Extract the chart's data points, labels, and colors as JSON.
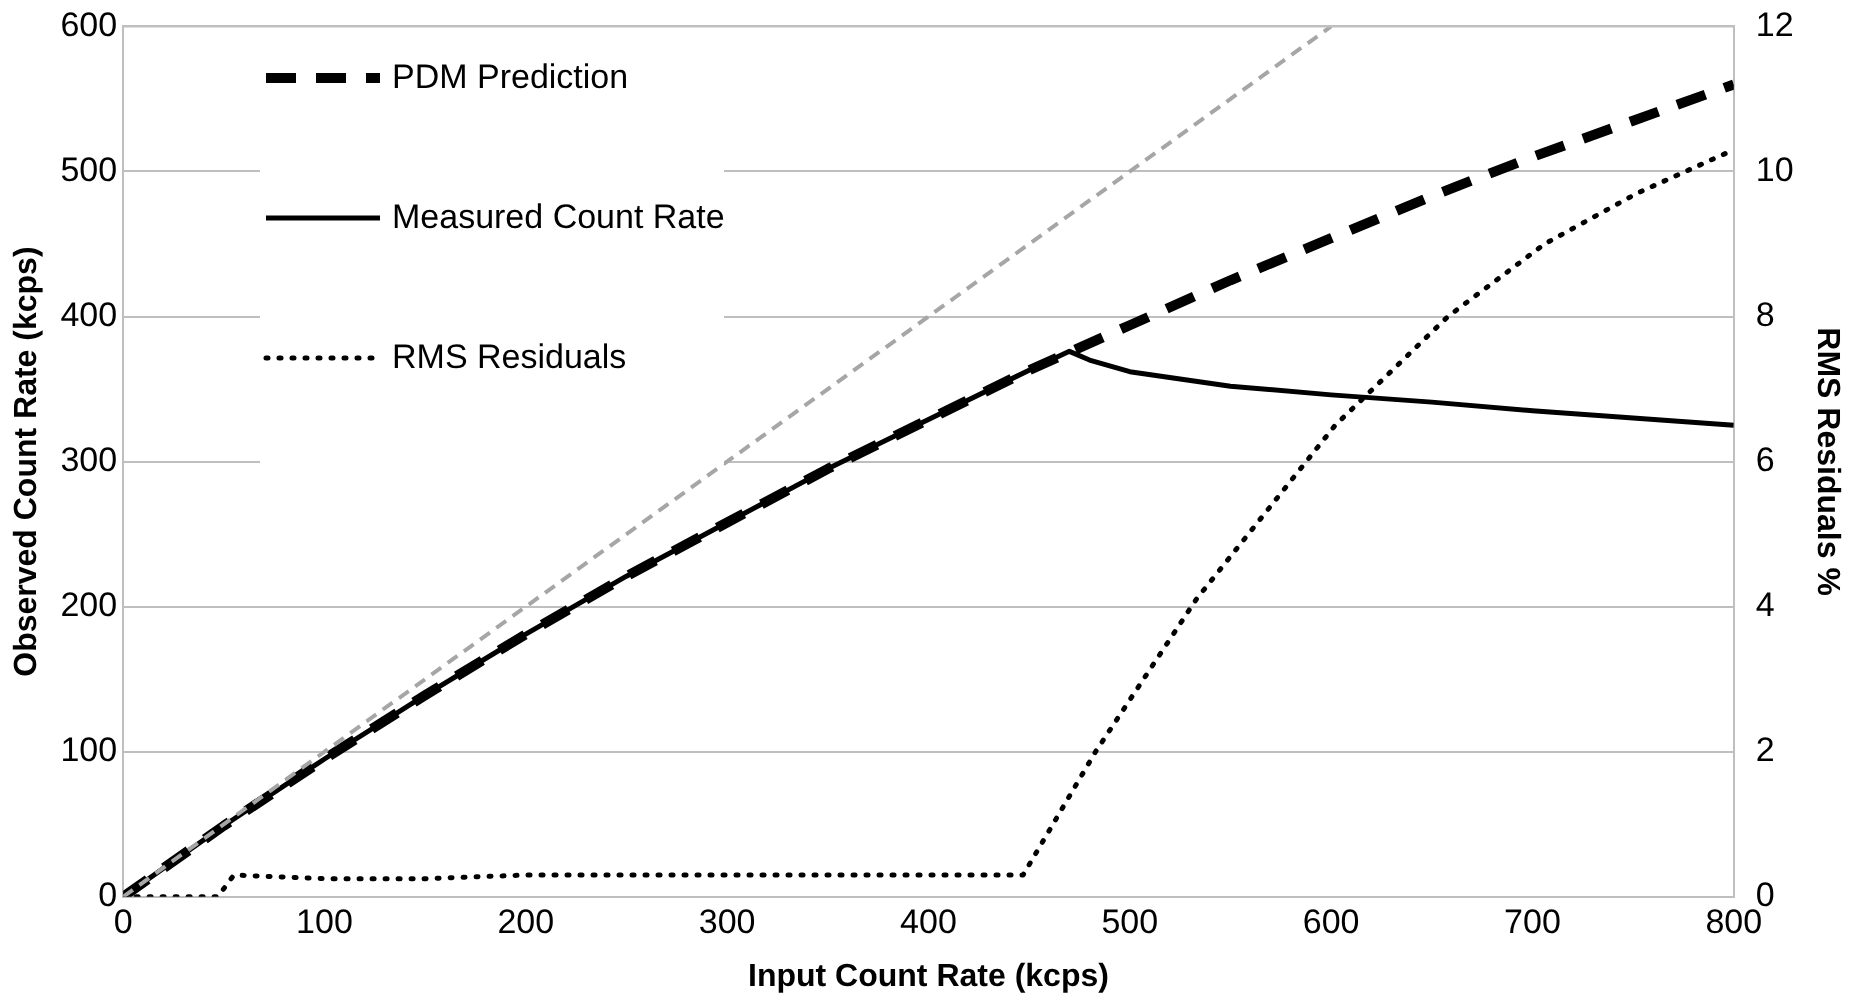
{
  "chart_data": {
    "type": "line",
    "xlabel": "Input Count Rate (kcps)",
    "ylabel": "Observed Count Rate (kcps)",
    "y2label": "RMS Residuals %",
    "xlim": [
      0,
      800
    ],
    "xticks": [
      0,
      100,
      200,
      300,
      400,
      500,
      600,
      700,
      800
    ],
    "ylim": [
      0,
      600
    ],
    "yticks": [
      0,
      100,
      200,
      300,
      400,
      500,
      600
    ],
    "y2lim": [
      0,
      12
    ],
    "y2ticks": [
      0,
      2,
      4,
      6,
      8,
      10,
      12
    ],
    "grid": "y",
    "legend": "top left",
    "series": [
      {
        "color": "#a6a6a6",
        "line_style": "dashed",
        "x": [
          0,
          600
        ],
        "values": [
          0,
          600
        ]
      },
      {
        "name": "PDM Prediction",
        "color": "#000000",
        "line_style": "dashed",
        "x": [
          0,
          50,
          100,
          150,
          200,
          250,
          300,
          350,
          400,
          450,
          500,
          550,
          600,
          650,
          700,
          750,
          800
        ],
        "values": [
          0,
          49,
          95,
          139,
          181,
          221,
          258,
          295,
          329,
          363,
          394,
          425,
          454,
          483,
          510,
          535,
          560
        ]
      },
      {
        "name": "Measured Count Rate",
        "color": "#000000",
        "line_style": "solid",
        "x": [
          0,
          50,
          100,
          150,
          200,
          250,
          300,
          350,
          400,
          450,
          470,
          480,
          500,
          550,
          600,
          650,
          700,
          750,
          800
        ],
        "values": [
          0,
          49,
          95,
          139,
          181,
          221,
          258,
          295,
          329,
          363,
          376,
          370,
          362,
          352,
          346,
          341,
          335,
          330,
          325
        ]
      },
      {
        "name": "RMS Residuals",
        "color": "#000000",
        "line_style": "dotted",
        "axis": "y2",
        "x": [
          0,
          47,
          55,
          100,
          150,
          200,
          300,
          400,
          447,
          483,
          533,
          602,
          658,
          706,
          752,
          800
        ],
        "values": [
          0,
          0,
          0.3,
          0.25,
          0.25,
          0.3,
          0.3,
          0.3,
          0.3,
          2.0,
          4.1,
          6.5,
          8.0,
          9.0,
          9.7,
          10.3
        ]
      }
    ]
  }
}
